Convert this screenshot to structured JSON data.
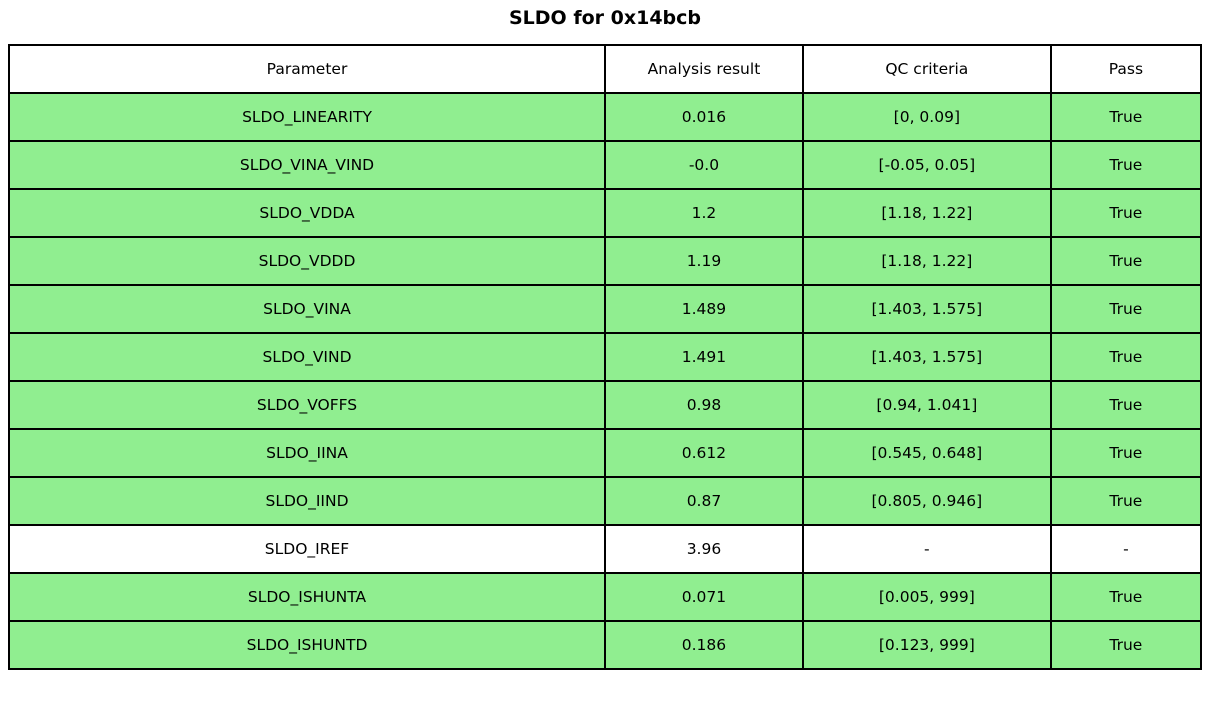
{
  "title": "SLDO for 0x14bcb",
  "chart_data": {
    "type": "table",
    "title": "SLDO for 0x14bcb",
    "columns": [
      "Parameter",
      "Analysis result",
      "QC criteria",
      "Pass"
    ],
    "rows": [
      [
        "SLDO_LINEARITY",
        "0.016",
        "[0, 0.09]",
        "True"
      ],
      [
        "SLDO_VINA_VIND",
        "-0.0",
        "[-0.05, 0.05]",
        "True"
      ],
      [
        "SLDO_VDDA",
        "1.2",
        "[1.18, 1.22]",
        "True"
      ],
      [
        "SLDO_VDDD",
        "1.19",
        "[1.18, 1.22]",
        "True"
      ],
      [
        "SLDO_VINA",
        "1.489",
        "[1.403, 1.575]",
        "True"
      ],
      [
        "SLDO_VIND",
        "1.491",
        "[1.403, 1.575]",
        "True"
      ],
      [
        "SLDO_VOFFS",
        "0.98",
        "[0.94, 1.041]",
        "True"
      ],
      [
        "SLDO_IINA",
        "0.612",
        "[0.545, 0.648]",
        "True"
      ],
      [
        "SLDO_IIND",
        "0.87",
        "[0.805, 0.946]",
        "True"
      ],
      [
        "SLDO_IREF",
        "3.96",
        "-",
        "-"
      ],
      [
        "SLDO_ISHUNTA",
        "0.071",
        "[0.005, 999]",
        "True"
      ],
      [
        "SLDO_ISHUNTD",
        "0.186",
        "[0.123, 999]",
        "True"
      ]
    ],
    "row_colors": [
      "green",
      "green",
      "green",
      "green",
      "green",
      "green",
      "green",
      "green",
      "green",
      "white",
      "green",
      "green"
    ],
    "colors": {
      "pass_row_background": "#90ee90",
      "neutral_row_background": "#ffffff",
      "header_background": "#ffffff",
      "border": "#000000",
      "text": "#000000"
    },
    "layout": {
      "grid": "full-borders",
      "legend": "none",
      "header_row": true
    }
  }
}
